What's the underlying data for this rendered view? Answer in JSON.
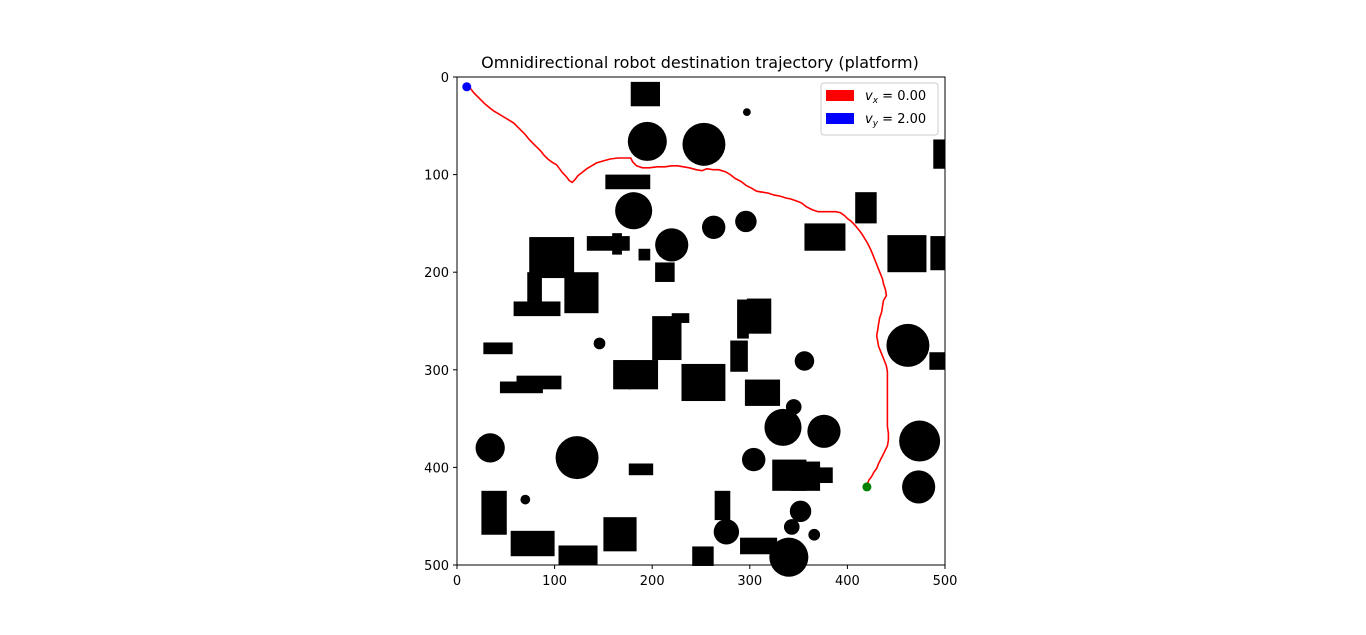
{
  "chart_data": {
    "type": "scatter",
    "title": "Omnidirectional robot destination trajectory (platform)",
    "xlabel": "",
    "ylabel": "",
    "xlim": [
      0,
      500
    ],
    "ylim": [
      500,
      0
    ],
    "x_ticks": [
      "0",
      "100",
      "200",
      "300",
      "400",
      "500"
    ],
    "y_ticks": [
      "0",
      "100",
      "200",
      "300",
      "400",
      "500"
    ],
    "grid": false,
    "legend_position": "top-right",
    "legend": [
      {
        "symbol": "v",
        "sub": "x",
        "text": " = 0.00",
        "color": "#ff0000"
      },
      {
        "symbol": "v",
        "sub": "y",
        "text": " = 2.00",
        "color": "#0000ff"
      }
    ],
    "start_point": {
      "x": 10,
      "y": 10,
      "color": "#0000ff"
    },
    "goal_point": {
      "x": 420,
      "y": 420,
      "color": "#008000"
    },
    "trajectory_color": "#ff0000",
    "trajectory": [
      [
        10,
        10
      ],
      [
        14,
        12
      ],
      [
        17,
        16
      ],
      [
        21,
        20
      ],
      [
        25,
        24
      ],
      [
        29,
        28
      ],
      [
        34,
        32
      ],
      [
        38,
        35
      ],
      [
        43,
        38
      ],
      [
        48,
        41
      ],
      [
        53,
        44
      ],
      [
        58,
        47
      ],
      [
        62,
        51
      ],
      [
        66,
        55
      ],
      [
        70,
        59
      ],
      [
        74,
        64
      ],
      [
        78,
        68
      ],
      [
        82,
        72
      ],
      [
        86,
        76
      ],
      [
        89,
        80
      ],
      [
        93,
        84
      ],
      [
        97,
        87
      ],
      [
        102,
        90
      ],
      [
        105,
        94
      ],
      [
        108,
        98
      ],
      [
        112,
        102
      ],
      [
        115,
        106
      ],
      [
        118,
        108
      ],
      [
        121,
        105
      ],
      [
        124,
        101
      ],
      [
        128,
        98
      ],
      [
        133,
        94
      ],
      [
        138,
        91
      ],
      [
        143,
        88
      ],
      [
        150,
        86
      ],
      [
        157,
        84
      ],
      [
        165,
        83
      ],
      [
        172,
        83
      ],
      [
        178,
        83
      ],
      [
        180,
        87
      ],
      [
        184,
        91
      ],
      [
        190,
        93
      ],
      [
        197,
        93
      ],
      [
        205,
        92
      ],
      [
        213,
        92
      ],
      [
        220,
        91
      ],
      [
        226,
        91
      ],
      [
        232,
        92
      ],
      [
        238,
        93
      ],
      [
        245,
        95
      ],
      [
        251,
        96
      ],
      [
        256,
        94
      ],
      [
        262,
        95
      ],
      [
        268,
        95
      ],
      [
        275,
        97
      ],
      [
        280,
        100
      ],
      [
        285,
        104
      ],
      [
        291,
        107
      ],
      [
        296,
        111
      ],
      [
        302,
        114
      ],
      [
        307,
        117
      ],
      [
        313,
        118
      ],
      [
        319,
        119
      ],
      [
        325,
        121
      ],
      [
        331,
        122
      ],
      [
        337,
        124
      ],
      [
        342,
        125
      ],
      [
        348,
        127
      ],
      [
        353,
        129
      ],
      [
        358,
        133
      ],
      [
        364,
        136
      ],
      [
        370,
        138
      ],
      [
        376,
        138
      ],
      [
        382,
        138
      ],
      [
        388,
        138
      ],
      [
        393,
        139
      ],
      [
        397,
        142
      ],
      [
        400,
        145
      ],
      [
        404,
        148
      ],
      [
        408,
        152
      ],
      [
        412,
        157
      ],
      [
        415,
        161
      ],
      [
        418,
        166
      ],
      [
        421,
        171
      ],
      [
        424,
        177
      ],
      [
        426,
        182
      ],
      [
        428,
        187
      ],
      [
        430,
        192
      ],
      [
        432,
        197
      ],
      [
        434,
        202
      ],
      [
        436,
        207
      ],
      [
        437,
        212
      ],
      [
        439,
        218
      ],
      [
        440,
        224
      ],
      [
        437,
        229
      ],
      [
        436,
        235
      ],
      [
        435,
        241
      ],
      [
        433,
        247
      ],
      [
        432,
        253
      ],
      [
        431,
        259
      ],
      [
        430,
        265
      ],
      [
        431,
        271
      ],
      [
        432,
        276
      ],
      [
        434,
        281
      ],
      [
        436,
        286
      ],
      [
        438,
        291
      ],
      [
        440,
        296
      ],
      [
        441,
        302
      ],
      [
        441,
        309
      ],
      [
        441,
        316
      ],
      [
        441,
        323
      ],
      [
        441,
        330
      ],
      [
        441,
        337
      ],
      [
        441,
        344
      ],
      [
        441,
        351
      ],
      [
        441,
        358
      ],
      [
        442,
        365
      ],
      [
        442,
        372
      ],
      [
        441,
        378
      ],
      [
        438,
        384
      ],
      [
        435,
        390
      ],
      [
        432,
        396
      ],
      [
        430,
        401
      ],
      [
        427,
        405
      ],
      [
        425,
        409
      ],
      [
        422,
        413
      ],
      [
        420,
        418
      ]
    ],
    "obstacles_rect": [
      [
        178,
        5,
        30,
        25
      ],
      [
        152,
        100,
        46,
        15
      ],
      [
        133,
        163,
        44,
        15
      ],
      [
        159,
        160,
        10,
        22
      ],
      [
        186,
        176,
        12,
        12
      ],
      [
        74,
        164,
        46,
        42
      ],
      [
        72,
        200,
        15,
        30
      ],
      [
        110,
        200,
        35,
        42
      ],
      [
        58,
        230,
        48,
        15
      ],
      [
        27,
        272,
        30,
        12
      ],
      [
        44,
        312,
        44,
        12
      ],
      [
        61,
        306,
        46,
        14
      ],
      [
        200,
        245,
        30,
        45
      ],
      [
        220,
        242,
        18,
        10
      ],
      [
        176,
        290,
        30,
        30
      ],
      [
        160,
        290,
        18,
        30
      ],
      [
        203,
        190,
        20,
        20
      ],
      [
        230,
        294,
        45,
        38
      ],
      [
        280,
        270,
        18,
        32
      ],
      [
        287,
        228,
        12,
        40
      ],
      [
        297,
        227,
        25,
        36
      ],
      [
        295,
        310,
        36,
        27
      ],
      [
        323,
        392,
        35,
        32
      ],
      [
        342,
        394,
        30,
        30
      ],
      [
        370,
        400,
        15,
        16
      ],
      [
        25,
        424,
        26,
        45
      ],
      [
        55,
        465,
        45,
        26
      ],
      [
        104,
        480,
        40,
        20
      ],
      [
        150,
        451,
        34,
        35
      ],
      [
        176,
        396,
        25,
        12
      ],
      [
        241,
        481,
        22,
        20
      ],
      [
        264,
        424,
        16,
        30
      ],
      [
        290,
        472,
        38,
        17
      ],
      [
        356,
        150,
        42,
        28
      ],
      [
        408,
        118,
        22,
        32
      ],
      [
        441,
        162,
        40,
        38
      ],
      [
        485,
        163,
        15,
        35
      ],
      [
        484,
        282,
        16,
        18
      ],
      [
        488,
        64,
        12,
        30
      ]
    ],
    "obstacles_circle": [
      [
        195,
        66,
        20
      ],
      [
        253,
        69,
        22
      ],
      [
        181,
        137,
        19
      ],
      [
        220,
        172,
        17
      ],
      [
        263,
        154,
        12
      ],
      [
        296,
        148,
        11
      ],
      [
        297,
        36,
        4
      ],
      [
        146,
        273,
        6
      ],
      [
        356,
        291,
        10
      ],
      [
        462,
        275,
        22
      ],
      [
        376,
        363,
        17
      ],
      [
        334,
        359,
        19
      ],
      [
        345,
        338,
        8
      ],
      [
        34,
        380,
        15
      ],
      [
        123,
        390,
        22
      ],
      [
        304,
        392,
        12
      ],
      [
        70,
        433,
        5
      ],
      [
        276,
        466,
        13
      ],
      [
        352,
        445,
        11
      ],
      [
        343,
        461,
        8
      ],
      [
        366,
        469,
        6
      ],
      [
        340,
        492,
        20
      ],
      [
        474,
        373,
        21
      ],
      [
        473,
        420,
        17
      ]
    ],
    "colors": {
      "axes_edge": "#000000",
      "obstacle": "#000000",
      "background": "#ffffff"
    }
  }
}
